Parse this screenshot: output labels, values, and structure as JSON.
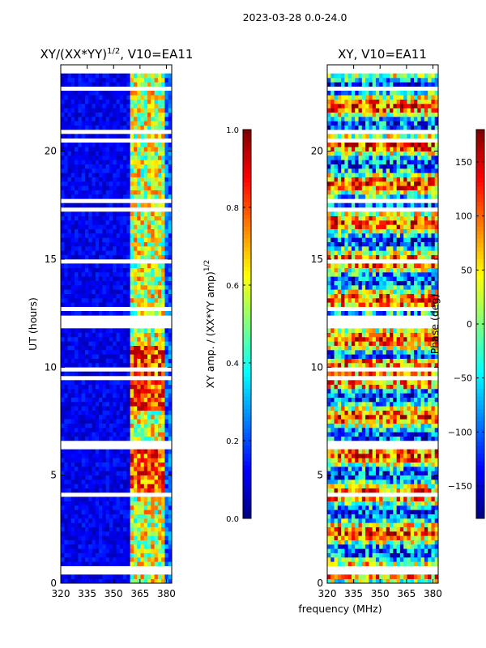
{
  "figure": {
    "suptitle": "2023-03-28 0.0-24.0",
    "shared_xlabel": "frequency (MHz)"
  },
  "chart_data": [
    {
      "type": "heatmap",
      "title": "XY/(XX*YY)^{1/2}, V10=EA11",
      "title_main": "XY/(XX*YY)",
      "title_exp": "1/2",
      "title_tail": ", V10=EA11",
      "xlabel": "",
      "ylabel": "UT (hours)",
      "xlim": [
        320,
        383
      ],
      "ylim": [
        0,
        24
      ],
      "xticks": [
        320,
        335,
        350,
        365,
        380
      ],
      "yticks": [
        0,
        5,
        10,
        15,
        20
      ],
      "colorbar": {
        "label_main": "XY amp. / (XX*YY amp)",
        "label_exp": "1/2",
        "range": [
          0.0,
          1.0
        ],
        "ticks": [
          "0.0",
          "0.2",
          "0.4",
          "0.6",
          "0.8",
          "1.0"
        ],
        "tick_values": [
          0.0,
          0.2,
          0.4,
          0.6,
          0.8,
          1.0
        ],
        "colormap": "jet"
      },
      "z_description": "normalized XY amplitude; low (~0.05) below ~360 MHz, high (0.5-0.95) in channels 360-380 MHz"
    },
    {
      "type": "heatmap",
      "title": "XY, V10=EA11",
      "xlabel": "frequency (MHz)",
      "ylabel": "",
      "xlim": [
        320,
        383
      ],
      "ylim": [
        0,
        24
      ],
      "xticks": [
        320,
        335,
        350,
        365,
        380
      ],
      "yticks": [
        0,
        5,
        10,
        15,
        20
      ],
      "colorbar": {
        "label": "Phase (deg)",
        "range": [
          -180,
          180
        ],
        "ticks": [
          "150",
          "100",
          "50",
          "0",
          "−50",
          "−100",
          "−150"
        ],
        "tick_values": [
          150,
          100,
          50,
          0,
          -50,
          -100,
          -150
        ],
        "colormap": "jet"
      },
      "z_description": "XY phase in degrees, noisy rows spanning -180 to 180"
    }
  ]
}
